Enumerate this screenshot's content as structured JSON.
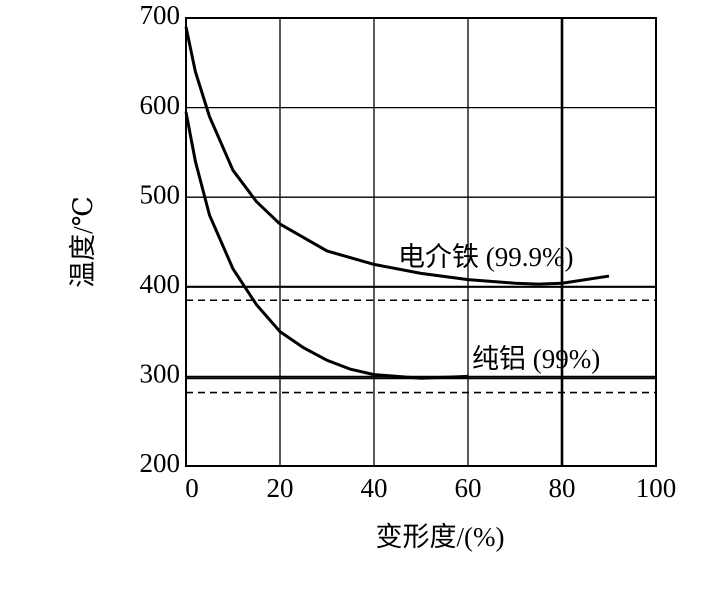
{
  "chart_data": {
    "type": "line",
    "x_label": "变形度/(%)",
    "y_label": "温度/℃",
    "xlim": [
      0,
      100
    ],
    "xticks": [
      0,
      20,
      40,
      60,
      80,
      100
    ],
    "ylim": [
      200,
      700
    ],
    "yticks": [
      200,
      300,
      400,
      500,
      600,
      700
    ],
    "grid": true,
    "color": "#000000",
    "series": [
      {
        "name": "电介铁 (99.9%)",
        "color": "#000000",
        "x": [
          0,
          2,
          5,
          10,
          15,
          20,
          30,
          40,
          50,
          60,
          70,
          75,
          80,
          90
        ],
        "values": [
          690,
          640,
          590,
          530,
          495,
          470,
          440,
          425,
          415,
          408,
          404,
          403,
          404,
          412
        ]
      },
      {
        "name": "纯铝 (99%)",
        "color": "#000000",
        "x": [
          0,
          2,
          5,
          10,
          15,
          20,
          25,
          30,
          35,
          40,
          50,
          60
        ],
        "values": [
          595,
          540,
          480,
          420,
          380,
          350,
          332,
          318,
          308,
          302,
          298,
          300
        ]
      }
    ],
    "reference_lines": [
      {
        "value": 400,
        "style": "solid"
      },
      {
        "value": 385,
        "style": "dashed"
      },
      {
        "value": 298,
        "style": "solid"
      },
      {
        "value": 282,
        "style": "dashed"
      }
    ],
    "vertical_reference": {
      "value": 80,
      "style": "solid"
    }
  }
}
